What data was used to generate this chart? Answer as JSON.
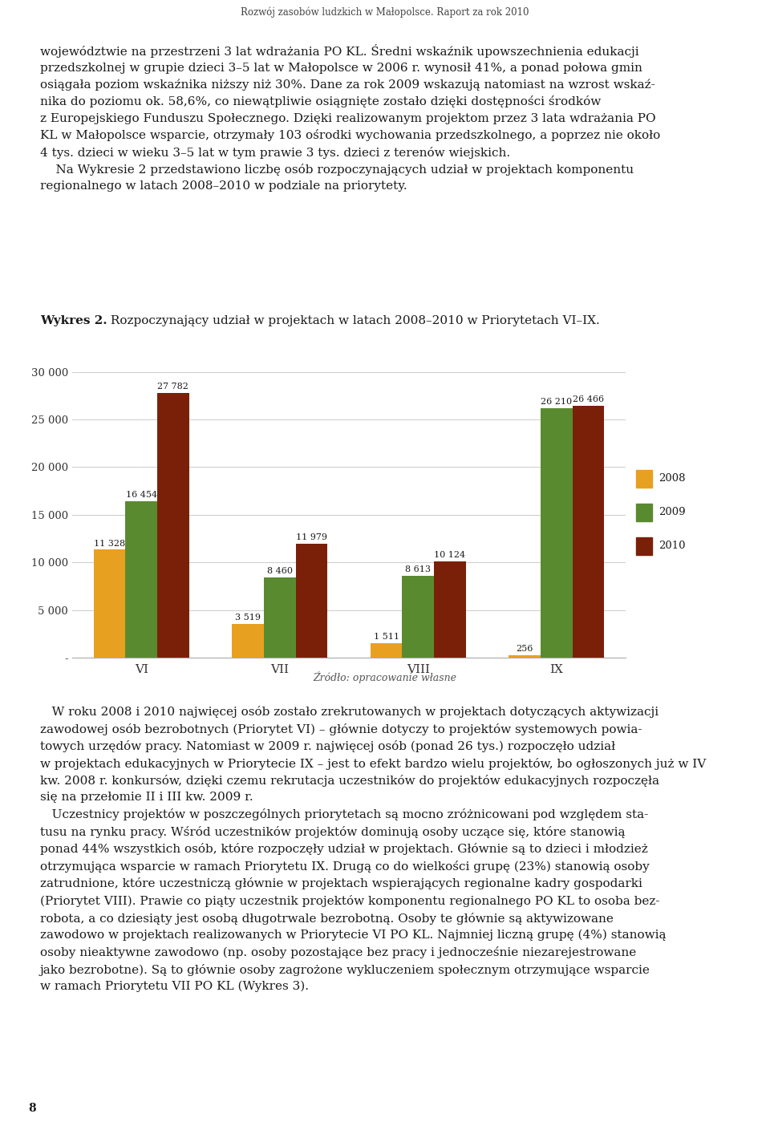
{
  "categories": [
    "VI",
    "VII",
    "VIII",
    "IX"
  ],
  "series": {
    "2008": [
      11328,
      3519,
      1511,
      256
    ],
    "2009": [
      16454,
      8460,
      8613,
      26210
    ],
    "2010": [
      27782,
      11979,
      10124,
      26466
    ]
  },
  "colors": {
    "2008": "#E8A020",
    "2009": "#5A8A30",
    "2010": "#7B2008"
  },
  "ylim": [
    0,
    32000
  ],
  "yticks": [
    0,
    5000,
    10000,
    15000,
    20000,
    25000,
    30000
  ],
  "ytick_labels": [
    "-",
    "5 000",
    "10 000",
    "15 000",
    "20 000",
    "25 000",
    "30 000"
  ],
  "header_text": "Rozwój zasobów ludzkich w Małopolsce. Raport za rok 2010",
  "header_bar_colors": [
    "#1F3864",
    "#2E75B6",
    "#9DC3E6"
  ],
  "source_text": "Źródło: opracowanie własne",
  "bar_width": 0.23,
  "page_background": "#FFFFFF",
  "value_labels": {
    "2008": [
      "11 328",
      "3 519",
      "1 511",
      "256"
    ],
    "2009": [
      "16 454",
      "8 460",
      "8 613",
      "26 210"
    ],
    "2010": [
      "27 782",
      "11 979",
      "10 124",
      "26 466"
    ]
  },
  "top_paragraph": "województwie na przestrzeni 3 lat wdrażania PO KL. Średniwskaźnik upowszechnienia edukacji przedszkolnej w grupie dzieci 3–5 lat w Małopolsce w 2006 r. wynosił 41%, a ponad połowa gmin osiągała poziom wskaźnika niższy niż 30%. Dane za rok 2009 wskazują natomiast na wzrost wskaź-\nnika do poziomu ok. 58,6%, co niewątpliwie osiągnięte zostało dzięki dostępności środków z Europejskiego Funduszu Społecznego. Dzięki realizowanym projektom przez 3 lata wdrażania PO KL w Małopolsce wsparcie, otrzymały 103 ośrodki wychowania przedszkolnego, a poprzez nie około 4 tys. dzieci w wieku 3–5 lat w tym prawie 3 tys. dzieci z terenów wiejskich.\n    Na Wykresie 2 przedstawiono liczbę osób rozpoczynających udział w projektach komponentu regionalnego w latach 2008–2010 w podziale na priorytety.",
  "chart_title_bold": "Wykres 2.",
  "chart_title_rest": " Rozpoczynający udział w projektach w latach 2008–2010 w Priorytetach VI–IX.",
  "bottom_paragraph": "   W roku 2008 i 2010 najwięcej osób zostało zrekrutowanych w projektach dotyczących aktywizacji zawodowej osób bezrobotnych (Priorytet VI) – głównie dotyczy to projektów systemowych powia-\ntowych urzędów pracy. Natomiast w 2009 r. najwięcej osób (ponad 26 tys.) rozp oczęło udział w projektach edukacyjnych w Priorytecie IX – jest to efekt bardzo wielu projektów, bo ogłoszonych już w IV kw. 2008 r. konkursów, dzięki czemu rekrutacja uczestników do projektów edukacyjnych rozp oczęła się na przełomie II i III kw. 2009 r.\n   Uczestnicy projektów w poszczególnych priorytetach są mocno zróżnicowani pod względem sta-\ntusu na rynku pracy. Wśród uczestników projektów dominują osoby uczące się, które stanowią ponad 44% wszystkich osób, które rozp oczęły udział w projektach. Głównie są to dzieci i młodzież otrzymująca wsparcie w ramach Priorytetu IX. Drugą co do wielkości grupę (23%) stanowią osoby zatrudnione, które uczestniczą głównie w projektach wspierających regionalne kadry gospodarki (Priorytet VIII). Prawie co piąty uczestnik projektów komponentu regionalnego PO KL to osoba bez-\nrobotna, a co dziesiąty jest osobą długotrwale bezrobotną. Osoby te głównie są aktywizowane zawodowo w projektach realizowanych w Priorytecie VI PO KL. Najmniej liczną grupę (4%) stanowią osoby nieaktywne zawodowo (np. osoby pozostające bez pracy i jednocześnie niezarejestrowane jako bezrobotne). Są to głównie osoby zagrożone wykluczeniem społecznym otrzymujące wsparcie w ramach Priorytetu VII PO KL (ŁŁŁŁ 3).",
  "page_number": "8"
}
